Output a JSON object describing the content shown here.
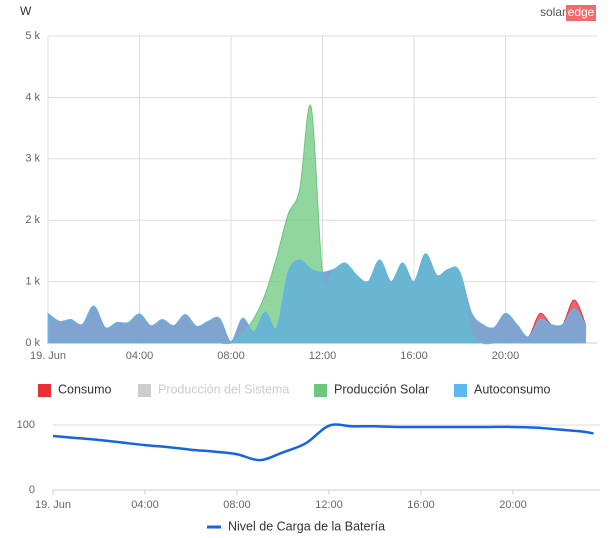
{
  "logo": {
    "part1": "solar",
    "part2": "edge"
  },
  "chart_data": [
    {
      "type": "area",
      "y_label": "W",
      "x": [
        0,
        0.5,
        1,
        1.5,
        2,
        2.5,
        3,
        3.5,
        4,
        4.5,
        5,
        5.5,
        6,
        6.5,
        7,
        7.5,
        8,
        8.5,
        9,
        9.5,
        10,
        10.5,
        11,
        11.5,
        12,
        12.5,
        13,
        13.5,
        14,
        14.5,
        15,
        15.5,
        16,
        16.5,
        17,
        17.5,
        18,
        18.5,
        19,
        19.5,
        20,
        20.5,
        21,
        21.5,
        22,
        22.5,
        23,
        23.5
      ],
      "xlim": [
        0,
        24
      ],
      "xticks": [
        {
          "value": 0,
          "label": "19. Jun"
        },
        {
          "value": 4,
          "label": "04:00"
        },
        {
          "value": 8,
          "label": "08:00"
        },
        {
          "value": 12,
          "label": "12:00"
        },
        {
          "value": 16,
          "label": "16:00"
        },
        {
          "value": 20,
          "label": "20:00"
        }
      ],
      "ylim": [
        0,
        5000
      ],
      "yticks": [
        {
          "value": 0,
          "label": "0 k"
        },
        {
          "value": 1000,
          "label": "1 k"
        },
        {
          "value": 2000,
          "label": "2 k"
        },
        {
          "value": 3000,
          "label": "3 k"
        },
        {
          "value": 4000,
          "label": "4 k"
        },
        {
          "value": 5000,
          "label": "5 k"
        }
      ],
      "grid": true,
      "series": [
        {
          "name": "Consumo",
          "color": "#e8303a",
          "values": [
            480,
            350,
            380,
            300,
            600,
            250,
            330,
            330,
            470,
            280,
            380,
            280,
            460,
            270,
            350,
            400,
            20,
            400,
            180,
            500,
            250,
            1150,
            1350,
            1200,
            1150,
            1200,
            1300,
            1100,
            1000,
            1350,
            1000,
            1300,
            1000,
            1450,
            1100,
            1200,
            1150,
            500,
            300,
            250,
            480,
            300,
            100,
            480,
            300,
            300,
            700,
            300
          ]
        },
        {
          "name": "Producción del Sistema",
          "color": "#cccccc",
          "visible": false
        },
        {
          "name": "Producción Solar",
          "color": "#6cc77f",
          "values": [
            0,
            0,
            0,
            0,
            0,
            0,
            0,
            0,
            0,
            0,
            0,
            0,
            0,
            0,
            0,
            0,
            0,
            150,
            400,
            800,
            1400,
            2100,
            2500,
            3850,
            1150,
            1200,
            1300,
            1100,
            1000,
            1350,
            1000,
            1300,
            1000,
            1450,
            1100,
            1200,
            1150,
            200,
            0,
            0,
            0,
            0,
            0,
            0,
            0,
            0,
            0,
            0
          ]
        },
        {
          "name": "Autoconsumo",
          "color": "#5cb8f0",
          "values": [
            480,
            350,
            380,
            300,
            600,
            250,
            330,
            330,
            470,
            280,
            380,
            280,
            460,
            270,
            350,
            400,
            20,
            400,
            180,
            500,
            250,
            1150,
            1350,
            1200,
            1150,
            1200,
            1300,
            1100,
            1000,
            1350,
            1000,
            1300,
            1000,
            1450,
            1100,
            1200,
            1150,
            500,
            300,
            250,
            480,
            300,
            100,
            380,
            300,
            300,
            560,
            300
          ]
        }
      ]
    },
    {
      "type": "line",
      "x": [
        0,
        1,
        2,
        3,
        4,
        5,
        6,
        7,
        8,
        9,
        10,
        11,
        12,
        13,
        14,
        15,
        16,
        17,
        18,
        19,
        20,
        21,
        22,
        23,
        23.5
      ],
      "xlim": [
        0,
        24
      ],
      "xticks": [
        {
          "value": 0,
          "label": "19. Jun"
        },
        {
          "value": 4,
          "label": "04:00"
        },
        {
          "value": 8,
          "label": "08:00"
        },
        {
          "value": 12,
          "label": "12:00"
        },
        {
          "value": 16,
          "label": "16:00"
        },
        {
          "value": 20,
          "label": "20:00"
        }
      ],
      "ylim": [
        0,
        100
      ],
      "yticks": [
        0,
        100
      ],
      "series": [
        {
          "name": "Nivel de Carga de la Batería",
          "color": "#1565e0",
          "values": [
            83,
            80,
            77,
            73,
            69,
            66,
            62,
            59,
            55,
            46,
            58,
            72,
            99,
            98,
            98,
            97,
            97,
            97,
            97,
            97,
            97,
            96,
            93,
            90,
            87
          ]
        }
      ]
    }
  ]
}
